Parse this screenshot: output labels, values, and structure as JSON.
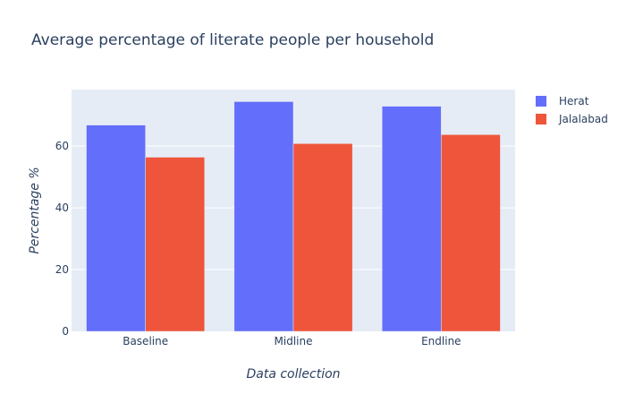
{
  "chart_data": {
    "type": "bar",
    "title": "Average percentage of literate people per household",
    "xlabel": "Data collection",
    "ylabel": "Percentage %",
    "categories": [
      "Baseline",
      "Midline",
      "Endline"
    ],
    "series": [
      {
        "name": "Herat",
        "values": [
          66.8,
          74.4,
          72.9
        ],
        "color": "#636efa"
      },
      {
        "name": "Jalalabad",
        "values": [
          56.4,
          60.8,
          63.7
        ],
        "color": "#ef553b"
      }
    ],
    "ylim": [
      0,
      78.3
    ],
    "yticks": [
      0,
      20,
      40,
      60
    ],
    "grid": true,
    "legend_position": "top-right",
    "plot_background": "#e5ecf6"
  }
}
